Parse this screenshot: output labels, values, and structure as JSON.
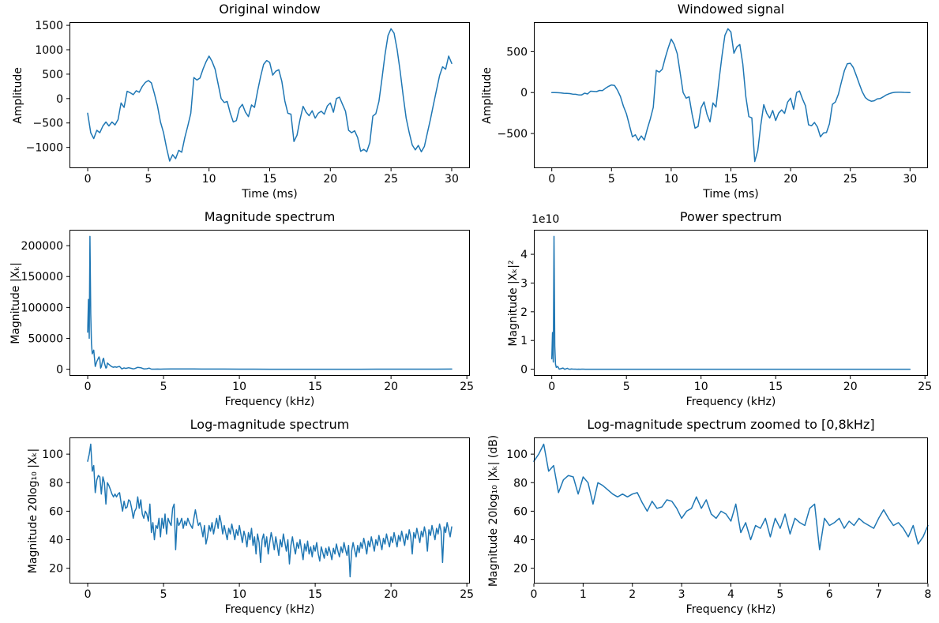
{
  "figure": {
    "background": "#ffffff",
    "line_color": "#1f77b4",
    "axis_color": "#000000"
  },
  "chart_data": [
    {
      "type": "line",
      "title": "Original window",
      "xlabel": "Time (ms)",
      "ylabel": "Amplitude",
      "xlim": [
        -1.5,
        31.5
      ],
      "ylim": [
        -1426,
        1566
      ],
      "grid": false,
      "legend": null,
      "xticks": [
        0,
        5,
        10,
        15,
        20,
        25,
        30
      ],
      "xticklabels": [
        "0",
        "5",
        "10",
        "15",
        "20",
        "25",
        "30"
      ],
      "yticks": [
        -1000,
        -500,
        0,
        500,
        1000,
        1500
      ],
      "yticklabels": [
        "−1000",
        "−500",
        "0",
        "500",
        "1000",
        "1500"
      ],
      "x0": 0,
      "dx": 0.25,
      "y": [
        -300,
        -700,
        -820,
        -650,
        -700,
        -560,
        -480,
        -560,
        -480,
        -540,
        -430,
        -90,
        -180,
        150,
        120,
        80,
        160,
        130,
        250,
        330,
        370,
        320,
        100,
        -150,
        -480,
        -700,
        -1010,
        -1280,
        -1150,
        -1230,
        -1060,
        -1100,
        -800,
        -560,
        -300,
        430,
        380,
        420,
        600,
        750,
        870,
        760,
        600,
        300,
        0,
        -80,
        -60,
        -300,
        -480,
        -450,
        -200,
        -120,
        -280,
        -370,
        -130,
        -180,
        150,
        450,
        700,
        780,
        740,
        480,
        560,
        590,
        350,
        -50,
        -300,
        -320,
        -880,
        -750,
        -430,
        -160,
        -280,
        -350,
        -250,
        -400,
        -300,
        -260,
        -320,
        -150,
        -90,
        -280,
        0,
        30,
        -120,
        -260,
        -650,
        -700,
        -660,
        -800,
        -1080,
        -1040,
        -1090,
        -900,
        -360,
        -310,
        -60,
        400,
        900,
        1290,
        1430,
        1340,
        1010,
        560,
        60,
        -400,
        -700,
        -950,
        -1050,
        -960,
        -1090,
        -980,
        -700,
        -420,
        -120,
        180,
        470,
        650,
        600,
        870,
        720
      ]
    },
    {
      "type": "line",
      "title": "Windowed signal",
      "xlabel": "Time (ms)",
      "ylabel": "Amplitude",
      "xlim": [
        -1.5,
        31.5
      ],
      "ylim": [
        -923,
        860
      ],
      "grid": false,
      "legend": null,
      "xticks": [
        0,
        5,
        10,
        15,
        20,
        25,
        30
      ],
      "xticklabels": [
        "0",
        "5",
        "10",
        "15",
        "20",
        "25",
        "30"
      ],
      "yticks": [
        -500,
        0,
        500
      ],
      "yticklabels": [
        "−500",
        "0",
        "500"
      ],
      "x0": 0,
      "dx": 0.25,
      "y": [
        0,
        0,
        -2,
        -4,
        -8,
        -10,
        -12,
        -19,
        -21,
        -29,
        -29,
        -7,
        -17,
        17,
        15,
        12,
        26,
        24,
        52,
        75,
        93,
        87,
        30,
        -48,
        -166,
        -259,
        -400,
        -540,
        -515,
        -583,
        -530,
        -579,
        -442,
        -324,
        -181,
        271,
        249,
        285,
        422,
        545,
        653,
        587,
        476,
        244,
        0,
        -68,
        -52,
        -267,
        -434,
        -414,
        -187,
        -113,
        -268,
        -358,
        -127,
        -177,
        148,
        447,
        698,
        779,
        740,
        480,
        558,
        586,
        346,
        -49,
        -293,
        -309,
        -842,
        -709,
        -401,
        -147,
        -253,
        -311,
        -218,
        -341,
        -250,
        -212,
        -254,
        -116,
        -68,
        -204,
        0,
        20,
        -79,
        -164,
        -393,
        -405,
        -365,
        -421,
        -540,
        -493,
        -488,
        -380,
        -143,
        -115,
        -21,
        128,
        267,
        352,
        358,
        305,
        208,
        104,
        10,
        -59,
        -90,
        -106,
        -100,
        -77,
        -73,
        -53,
        -30,
        -14,
        -3,
        3,
        5,
        4,
        2,
        1,
        0
      ]
    },
    {
      "type": "line",
      "title": "Magnitude spectrum",
      "xlabel": "Frequency (kHz)",
      "ylabel": "Magnitude |Xₖ|",
      "xlim": [
        -1.2,
        25.2
      ],
      "ylim": [
        -10700,
        225700
      ],
      "grid": false,
      "legend": null,
      "xticks": [
        0,
        5,
        10,
        15,
        20,
        25
      ],
      "xticklabels": [
        "0",
        "5",
        "10",
        "15",
        "20",
        "25"
      ],
      "yticks": [
        0,
        50000,
        100000,
        150000,
        200000
      ],
      "yticklabels": [
        "0",
        "50000",
        "100000",
        "150000",
        "200000"
      ],
      "x": [
        0,
        0.05,
        0.1,
        0.15,
        0.2,
        0.25,
        0.3,
        0.4,
        0.5,
        0.6,
        0.7,
        0.75,
        0.8,
        0.85,
        0.9,
        1.0,
        1.05,
        1.1,
        1.2,
        1.25,
        1.3,
        1.4,
        1.5,
        1.6,
        1.7,
        1.8,
        1.9,
        2.0,
        2.1,
        2.25,
        2.4,
        2.5,
        2.7,
        2.9,
        3.0,
        3.1,
        3.3,
        3.5,
        3.7,
        3.9,
        4.05,
        4.2,
        4.4,
        4.6,
        4.8,
        5.0,
        5.5,
        6.0,
        6.5,
        7.0,
        7.5,
        8.0,
        9.0,
        10.0,
        11.0,
        12.0,
        13.0,
        14.0,
        15.0,
        16.0,
        17.0,
        18.0,
        19.0,
        20.0,
        21.0,
        22.0,
        23.0,
        24.0
      ],
      "y": [
        60000,
        113000,
        50000,
        215000,
        90000,
        42000,
        25000,
        31000,
        4500,
        12600,
        17800,
        20000,
        15800,
        1800,
        4000,
        15800,
        17800,
        10000,
        1800,
        3200,
        10000,
        7900,
        5600,
        4000,
        3200,
        4000,
        3200,
        4000,
        4500,
        560,
        2240,
        1260,
        2500,
        1260,
        560,
        1000,
        3160,
        2500,
        560,
        800,
        1780,
        180,
        100,
        250,
        130,
        250,
        400,
        400,
        560,
        560,
        320,
        316,
        250,
        180,
        100,
        80,
        70,
        70,
        45,
        40,
        45,
        80,
        100,
        110,
        130,
        130,
        180,
        280
      ]
    },
    {
      "type": "line",
      "title": "Power spectrum",
      "xlabel": "Frequency (kHz)",
      "ylabel": "Magnitude |Xₖ|²",
      "offset_text": "1e10",
      "xlim": [
        -1.2,
        25.2
      ],
      "ylim": [
        -0.231,
        4.854
      ],
      "grid": false,
      "legend": null,
      "xticks": [
        0,
        5,
        10,
        15,
        20,
        25
      ],
      "xticklabels": [
        "0",
        "5",
        "10",
        "15",
        "20",
        "25"
      ],
      "yticks": [
        0,
        1,
        2,
        3,
        4
      ],
      "yticklabels": [
        "0",
        "1",
        "2",
        "3",
        "4"
      ],
      "x": [
        0,
        0.05,
        0.1,
        0.15,
        0.2,
        0.25,
        0.3,
        0.4,
        0.5,
        0.6,
        0.7,
        0.75,
        0.8,
        0.85,
        0.9,
        1.0,
        1.05,
        1.1,
        1.2,
        1.25,
        1.3,
        1.4,
        1.5,
        1.6,
        1.7,
        1.8,
        1.9,
        2.0,
        2.1,
        2.25,
        2.4,
        2.5,
        2.7,
        2.9,
        3.0,
        3.1,
        3.3,
        3.5,
        3.7,
        3.9,
        4.05,
        4.2,
        4.4,
        4.6,
        4.8,
        5.0,
        5.5,
        6.0,
        6.5,
        7.0,
        7.5,
        8.0,
        9.0,
        10.0,
        11.0,
        12.0,
        13.0,
        14.0,
        15.0,
        16.0,
        17.0,
        18.0,
        19.0,
        20.0,
        21.0,
        22.0,
        23.0,
        24.0
      ],
      "y": [
        0.36,
        1.277,
        0.25,
        4.623,
        0.81,
        0.176,
        0.063,
        0.096,
        0.002,
        0.016,
        0.032,
        0.04,
        0.025,
        0.0003,
        0.0016,
        0.025,
        0.032,
        0.01,
        0.0003,
        0.001,
        0.01,
        0.0062,
        0.0031,
        0.0016,
        0.001,
        0.0016,
        0.001,
        0.0016,
        0.002,
        0,
        0.0005,
        0.0002,
        0.0006,
        0.0002,
        0,
        0.0001,
        0.001,
        0.0006,
        0,
        0.0001,
        0.0003,
        0,
        0,
        0,
        0,
        0,
        0,
        0,
        0,
        0,
        0,
        0,
        0,
        0,
        0,
        0,
        0,
        0,
        0,
        0,
        0,
        0,
        0,
        0,
        0,
        0,
        0,
        0
      ]
    },
    {
      "type": "line",
      "title": "Log-magnitude spectrum",
      "xlabel": "Frequency (kHz)",
      "ylabel": "Magnitude 20log₁₀ |Xₖ|",
      "xlim": [
        -1.2,
        25.2
      ],
      "ylim": [
        9.3,
        111.7
      ],
      "grid": false,
      "legend": null,
      "xticks": [
        0,
        5,
        10,
        15,
        20,
        25
      ],
      "xticklabels": [
        "0",
        "5",
        "10",
        "15",
        "20",
        "25"
      ],
      "yticks": [
        20,
        40,
        60,
        80,
        100
      ],
      "yticklabels": [
        "20",
        "40",
        "60",
        "80",
        "100"
      ],
      "x0": 0,
      "dx": 0.1,
      "y": [
        95,
        100,
        107,
        88,
        92,
        73,
        82,
        85,
        84,
        72,
        84,
        80,
        65,
        80,
        78,
        75,
        72,
        70,
        72,
        70,
        72,
        73,
        66,
        60,
        67,
        62,
        63,
        68,
        67,
        62,
        55,
        60,
        62,
        70,
        62,
        68,
        58,
        55,
        60,
        58,
        53,
        65,
        45,
        52,
        40,
        50,
        48,
        55,
        42,
        55,
        48,
        58,
        44,
        55,
        52,
        50,
        62,
        65,
        33,
        55,
        50,
        52,
        55,
        48,
        53,
        50,
        55,
        52,
        50,
        48,
        55,
        61,
        55,
        50,
        52,
        48,
        42,
        50,
        37,
        42,
        50,
        46,
        52,
        44,
        50,
        55,
        48,
        57,
        52,
        44,
        50,
        45,
        40,
        48,
        44,
        51,
        46,
        40,
        47,
        43,
        50,
        44,
        38,
        46,
        42,
        35,
        45,
        40,
        48,
        36,
        42,
        30,
        44,
        38,
        24,
        40,
        44,
        35,
        42,
        30,
        38,
        45,
        40,
        33,
        42,
        36,
        29,
        40,
        35,
        44,
        38,
        32,
        40,
        23,
        36,
        42,
        35,
        30,
        38,
        34,
        40,
        33,
        26,
        37,
        32,
        39,
        30,
        35,
        28,
        36,
        32,
        38,
        30,
        25,
        35,
        31,
        27,
        34,
        29,
        35,
        31,
        26,
        34,
        30,
        37,
        32,
        28,
        35,
        31,
        38,
        33,
        29,
        36,
        14,
        32,
        38,
        33,
        28,
        36,
        31,
        38,
        34,
        41,
        36,
        30,
        39,
        35,
        42,
        37,
        32,
        40,
        36,
        43,
        38,
        33,
        41,
        37,
        44,
        39,
        35,
        42,
        38,
        45,
        40,
        35,
        43,
        39,
        46,
        41,
        36,
        44,
        40,
        47,
        42,
        30,
        45,
        41,
        48,
        43,
        38,
        46,
        42,
        49,
        44,
        32,
        47,
        43,
        50,
        45,
        40,
        48,
        44,
        51,
        46,
        24,
        49,
        45,
        52,
        47,
        42,
        49
      ]
    },
    {
      "type": "line",
      "title": "Log-magnitude spectrum zoomed to [0,8kHz]",
      "xlabel": "Frequency (kHz)",
      "ylabel": "Magnitude 20log₁₀ |Xₖ| (dB)",
      "xlim": [
        0,
        8
      ],
      "ylim": [
        9.3,
        111.7
      ],
      "grid": false,
      "legend": null,
      "xticks": [
        0,
        1,
        2,
        3,
        4,
        5,
        6,
        7,
        8
      ],
      "xticklabels": [
        "0",
        "1",
        "2",
        "3",
        "4",
        "5",
        "6",
        "7",
        "8"
      ],
      "yticks": [
        20,
        40,
        60,
        80,
        100
      ],
      "yticklabels": [
        "20",
        "40",
        "60",
        "80",
        "100"
      ],
      "x0": 0,
      "dx": 0.1,
      "y": [
        95,
        100,
        107,
        88,
        92,
        73,
        82,
        85,
        84,
        72,
        84,
        80,
        65,
        80,
        78,
        75,
        72,
        70,
        72,
        70,
        72,
        73,
        66,
        60,
        67,
        62,
        63,
        68,
        67,
        62,
        55,
        60,
        62,
        70,
        62,
        68,
        58,
        55,
        60,
        58,
        53,
        65,
        45,
        52,
        40,
        50,
        48,
        55,
        42,
        55,
        48,
        58,
        44,
        55,
        52,
        50,
        62,
        65,
        33,
        55,
        50,
        52,
        55,
        48,
        53,
        50,
        55,
        52,
        50,
        48,
        55,
        61,
        55,
        50,
        52,
        48,
        42,
        50,
        37,
        42,
        50
      ]
    }
  ]
}
